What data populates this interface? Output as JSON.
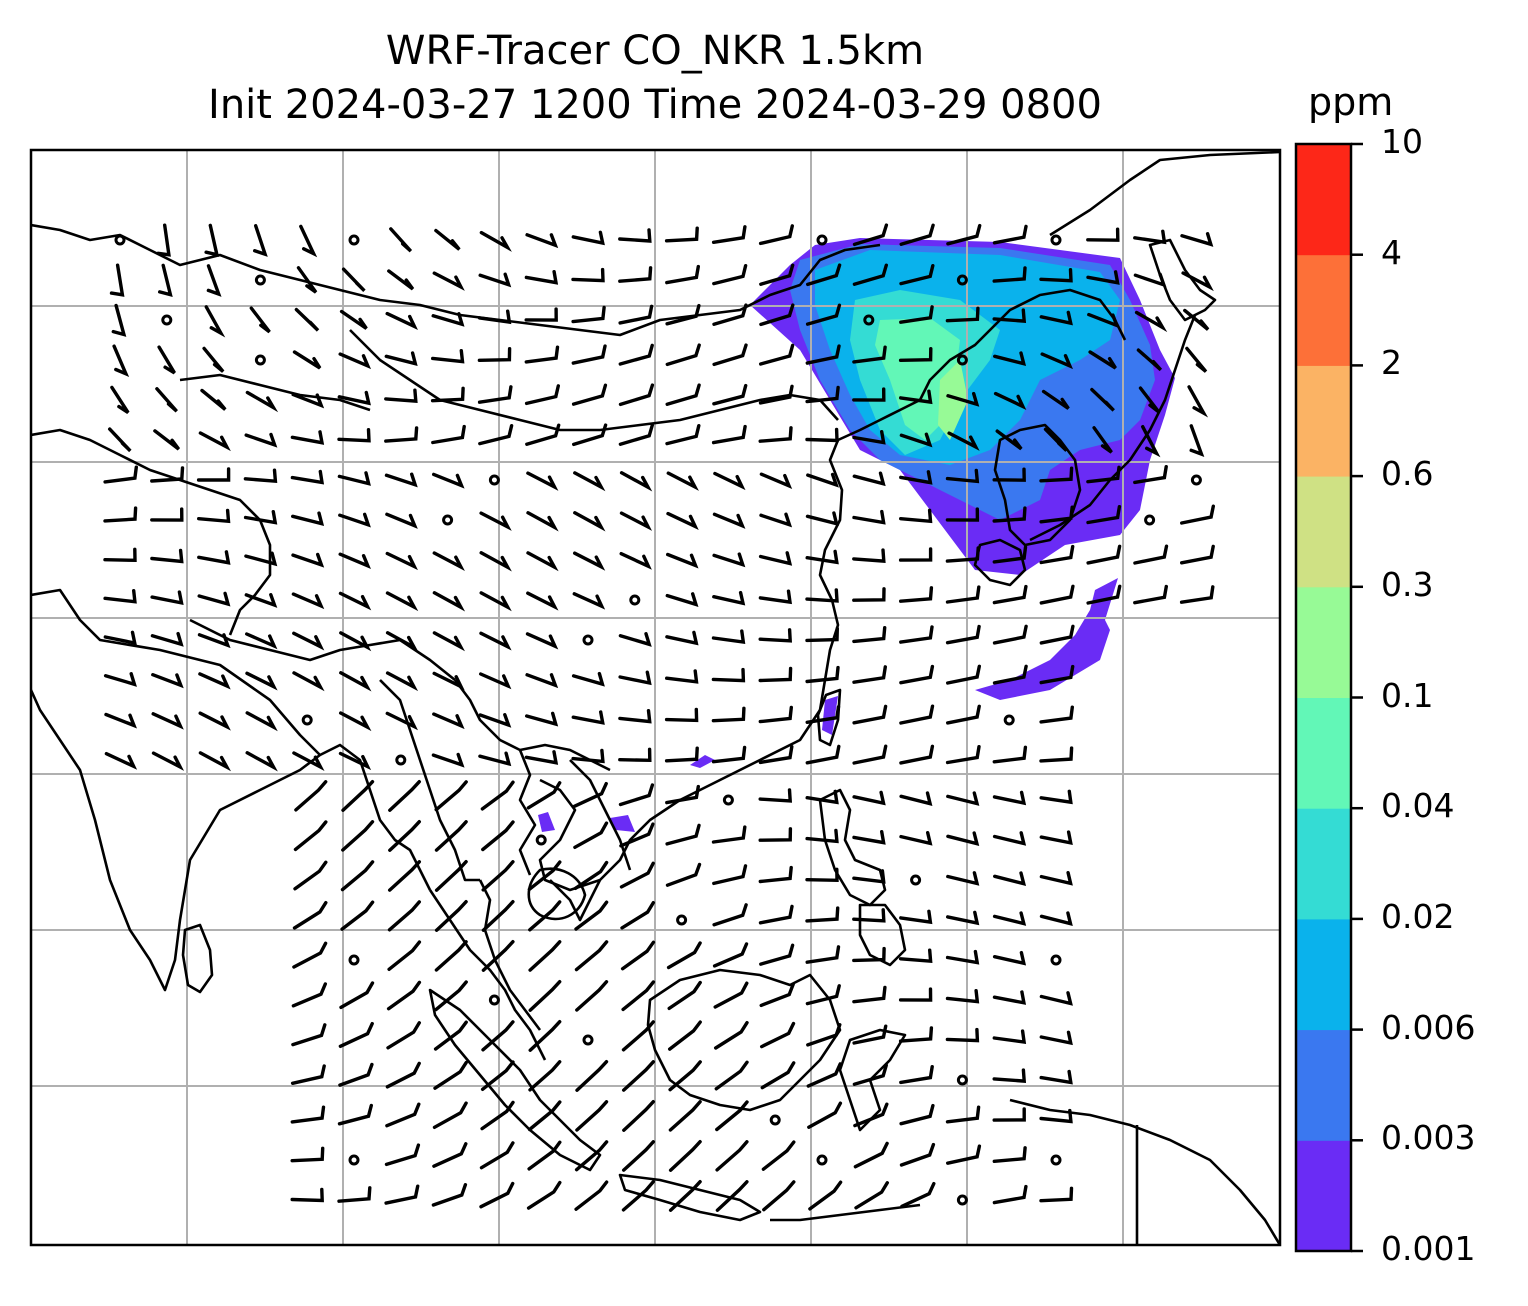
{
  "title": {
    "line1": "WRF-Tracer CO_NKR 1.5km",
    "line2": "Init 2024-03-27 1200 Time 2024-03-29 0800"
  },
  "colorbar": {
    "unit": "ppm",
    "levels": [
      "0.001",
      "0.003",
      "0.006",
      "0.02",
      "0.04",
      "0.1",
      "0.3",
      "0.6",
      "2",
      "4",
      "10"
    ],
    "colors": [
      "#6a2cf5",
      "#3a78f0",
      "#0ab2ec",
      "#34dcd4",
      "#62f7b7",
      "#97fa96",
      "#cfe184",
      "#fbb364",
      "#fd7038",
      "#fd2718"
    ]
  },
  "map": {
    "grid": true,
    "coastline_color": "#000000",
    "gridline_color": "#b0b0b0",
    "wind_barb_color": "#000000",
    "tracer_field": "CO_NKR"
  }
}
